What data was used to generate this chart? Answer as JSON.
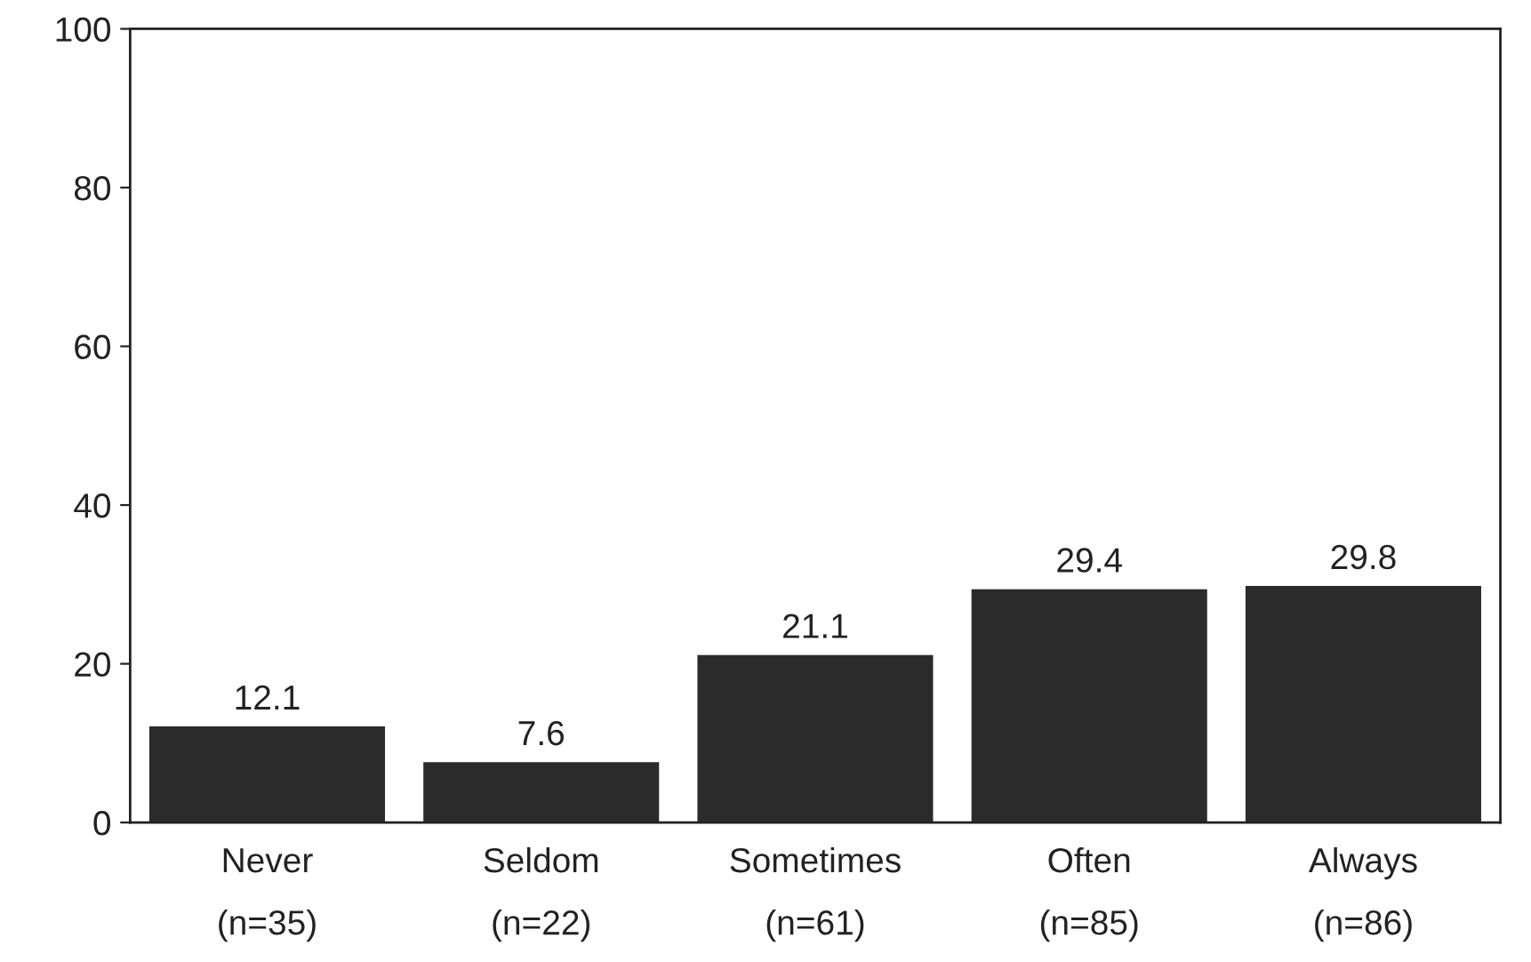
{
  "chart_data": {
    "type": "bar",
    "categories": [
      "Never\n(n=35)",
      "Seldom\n(n=22)",
      "Sometimes\n(n=61)",
      "Often\n(n=85)",
      "Always\n(n=86)"
    ],
    "values": [
      12.1,
      7.6,
      21.1,
      29.4,
      29.8
    ],
    "color": "#2b2b2b",
    "ylim": [
      0,
      100
    ],
    "yticks": [
      0,
      20,
      40,
      60,
      80,
      100
    ],
    "data_labels": true,
    "grid": false,
    "legend": false
  }
}
